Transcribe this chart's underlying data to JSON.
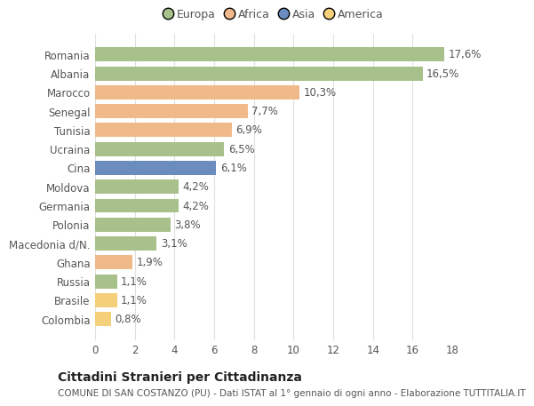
{
  "countries": [
    "Romania",
    "Albania",
    "Marocco",
    "Senegal",
    "Tunisia",
    "Ucraina",
    "Cina",
    "Moldova",
    "Germania",
    "Polonia",
    "Macedonia d/N.",
    "Ghana",
    "Russia",
    "Brasile",
    "Colombia"
  ],
  "values": [
    17.6,
    16.5,
    10.3,
    7.7,
    6.9,
    6.5,
    6.1,
    4.2,
    4.2,
    3.8,
    3.1,
    1.9,
    1.1,
    1.1,
    0.8
  ],
  "labels": [
    "17,6%",
    "16,5%",
    "10,3%",
    "7,7%",
    "6,9%",
    "6,5%",
    "6,1%",
    "4,2%",
    "4,2%",
    "3,8%",
    "3,1%",
    "1,9%",
    "1,1%",
    "1,1%",
    "0,8%"
  ],
  "continents": [
    "Europa",
    "Europa",
    "Africa",
    "Africa",
    "Africa",
    "Europa",
    "Asia",
    "Europa",
    "Europa",
    "Europa",
    "Europa",
    "Africa",
    "Europa",
    "America",
    "America"
  ],
  "colors": {
    "Europa": "#a8c08a",
    "Africa": "#f0b98a",
    "Asia": "#6b8cbf",
    "America": "#f5d07a"
  },
  "legend_order": [
    "Europa",
    "Africa",
    "Asia",
    "America"
  ],
  "xlim": [
    0,
    18
  ],
  "xticks": [
    0,
    2,
    4,
    6,
    8,
    10,
    12,
    14,
    16,
    18
  ],
  "title": "Cittadini Stranieri per Cittadinanza",
  "subtitle": "COMUNE DI SAN COSTANZO (PU) - Dati ISTAT al 1° gennaio di ogni anno - Elaborazione TUTTITALIA.IT",
  "bg_color": "#ffffff",
  "bar_height": 0.75,
  "label_fontsize": 8.5,
  "tick_fontsize": 8.5,
  "title_fontsize": 10,
  "subtitle_fontsize": 7.5,
  "grid_color": "#e0e0e0"
}
